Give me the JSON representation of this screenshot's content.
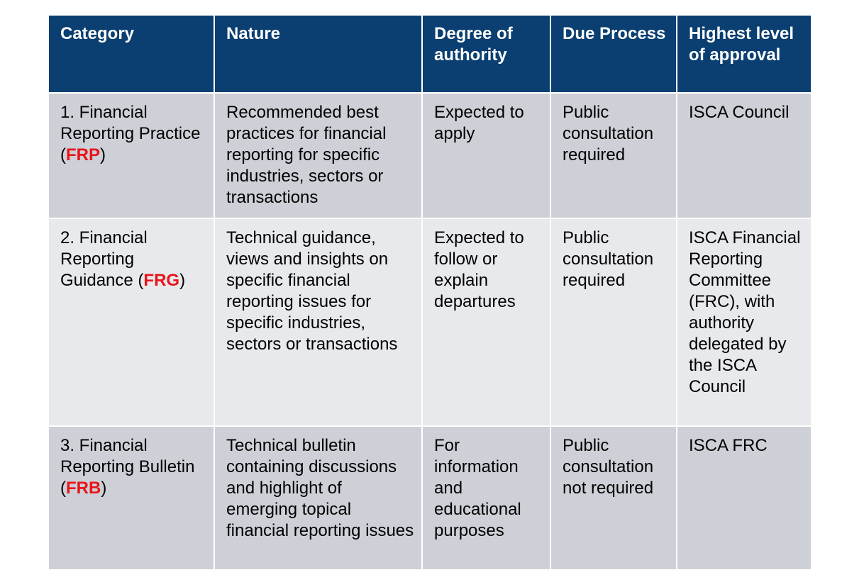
{
  "colors": {
    "header_bg": "#0b3f71",
    "header_text": "#ffffff",
    "row_odd_bg": "#cdd0d6",
    "row_even_bg": "#e8e9ec",
    "code_highlight": "#e8141a"
  },
  "headers": {
    "category": "Category",
    "nature": "Nature",
    "authority": "Degree of authority",
    "due_process": "Due Process",
    "approval": "Highest level of approval"
  },
  "rows": [
    {
      "category_prefix": "1. Financial Reporting Practice (",
      "code": "FRP",
      "category_suffix": ")",
      "nature": "Recommended best practices for financial reporting for specific industries, sectors or transactions",
      "authority": "Expected to apply",
      "due_process": "Public consultation required",
      "approval": "ISCA Council"
    },
    {
      "category_prefix": "2. Financial Reporting Guidance (",
      "code": "FRG",
      "category_suffix": ")",
      "nature": "Technical guidance, views and insights on specific financial reporting issues for specific industries, sectors or transactions",
      "authority": "Expected to follow or explain departures",
      "due_process": "Public consultation required",
      "approval": "ISCA Financial Reporting Committee (FRC), with authority delegated by the ISCA Council"
    },
    {
      "category_prefix": "3. Financial Reporting Bulletin (",
      "code": "FRB",
      "category_suffix": ")",
      "nature": "Technical bulletin containing discussions and highlight of emerging topical financial reporting issues",
      "authority": "For information and educational purposes",
      "due_process": "Public consultation not required",
      "approval": "ISCA FRC"
    }
  ]
}
